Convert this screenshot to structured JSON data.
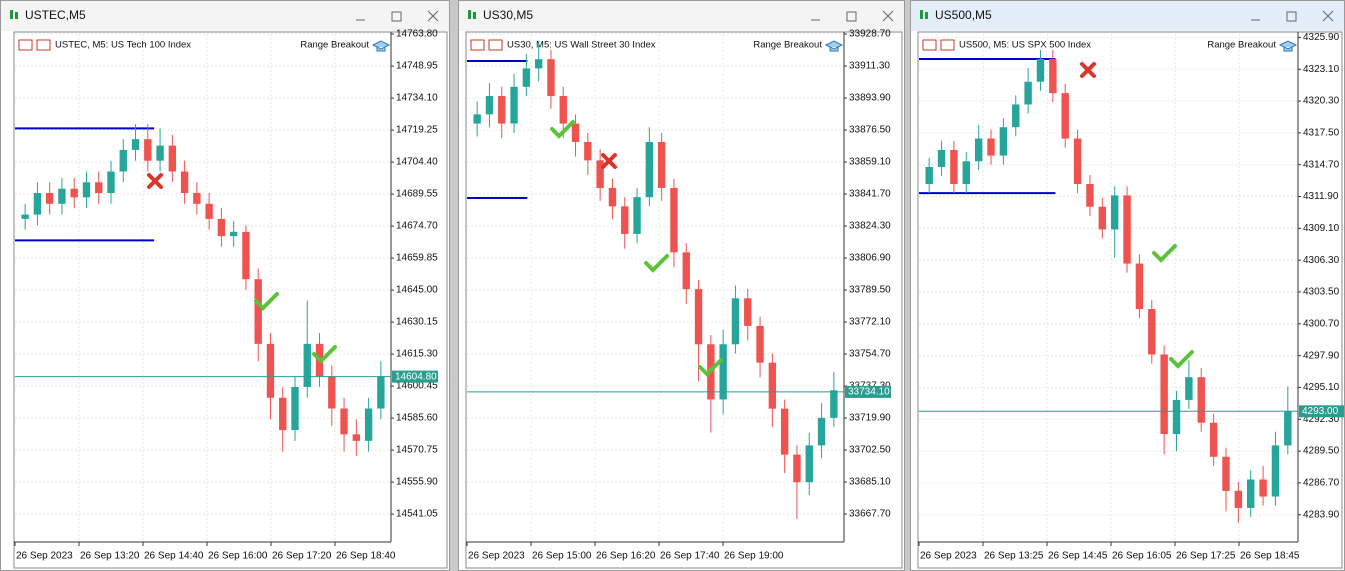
{
  "chart_data": [
    {
      "type": "candlestick",
      "title": "USTEC,M5",
      "subtitle": "USTEC, M5:  US Tech 100 Index",
      "indicator": "Range Breakout",
      "ylim": [
        14528.05,
        14763.8
      ],
      "yticks": [
        {
          "value": 14763.8,
          "label": "14763.80"
        },
        14748.95,
        {
          "value": 14734.1,
          "label": "14734.10"
        },
        14719.25,
        {
          "value": 14704.4,
          "label": "14704.40"
        },
        14689.55,
        {
          "value": 14674.7,
          "label": "14674.70"
        },
        14659.85,
        {
          "value": 14645,
          "label": "14645.00"
        },
        14630.15,
        {
          "value": 14615.3,
          "label": "14615.30"
        },
        14600.45,
        {
          "value": 14585.6,
          "label": "14585.60"
        },
        14570.75,
        {
          "value": 14555.9,
          "label": "14555.90"
        },
        14541.05
      ],
      "grid": true,
      "time_labels": [
        "26 Sep 2023",
        "26 Sep 13:20",
        "26 Sep 14:40",
        "26 Sep 16:00",
        "26 Sep 17:20",
        "26 Sep 18:40"
      ],
      "open": [
        14678,
        14680,
        14690,
        14685,
        14692,
        14688,
        14695,
        14690,
        14700,
        14710,
        14715,
        14705,
        14712,
        14700,
        14690,
        14685,
        14678,
        14670,
        14672,
        14650,
        14620,
        14595,
        14580,
        14600,
        14620,
        14605,
        14590,
        14578,
        14575,
        14590
      ],
      "high": [
        14685,
        14695,
        14695,
        14697,
        14697,
        14700,
        14700,
        14705,
        14715,
        14722,
        14722,
        14720,
        14717,
        14705,
        14695,
        14690,
        14683,
        14677,
        14675,
        14655,
        14625,
        14600,
        14605,
        14640,
        14625,
        14610,
        14595,
        14585,
        14595,
        14612
      ],
      "low": [
        14673,
        14675,
        14680,
        14680,
        14683,
        14683,
        14685,
        14685,
        14695,
        14705,
        14700,
        14700,
        14695,
        14685,
        14680,
        14673,
        14665,
        14665,
        14645,
        14612,
        14585,
        14570,
        14575,
        14595,
        14600,
        14582,
        14570,
        14568,
        14570,
        14585
      ],
      "close": [
        14680,
        14690,
        14685,
        14692,
        14688,
        14695,
        14690,
        14700,
        14710,
        14715,
        14705,
        14712,
        14700,
        14690,
        14685,
        14678,
        14670,
        14672,
        14650,
        14620,
        14595,
        14580,
        14600,
        14620,
        14605,
        14590,
        14578,
        14575,
        14590,
        14605
      ],
      "up_color": "#26a69a",
      "down_color": "#ef5350",
      "last": {
        "value": 14604.8,
        "label": "14604.80"
      },
      "range_high": 14720,
      "range_low": 14668,
      "range_color": "#0000cc"
    },
    {
      "type": "candlestick",
      "title": "US30,M5",
      "subtitle": "US30, M5:  US Wall Street 30 Index",
      "indicator": "Range Breakout",
      "ylim": [
        33652.5,
        33928.7
      ],
      "yticks": [
        {
          "value": 33928.7,
          "label": "33928.70"
        },
        {
          "value": 33911.3,
          "label": "33911.30"
        },
        {
          "value": 33893.9,
          "label": "33893.90"
        },
        {
          "value": 33876.5,
          "label": "33876.50"
        },
        {
          "value": 33859.1,
          "label": "33859.10"
        },
        {
          "value": 33841.7,
          "label": "33841.70"
        },
        {
          "value": 33824.3,
          "label": "33824.30"
        },
        {
          "value": 33806.9,
          "label": "33806.90"
        },
        {
          "value": 33789.5,
          "label": "33789.50"
        },
        {
          "value": 33772.1,
          "label": "33772.10"
        },
        {
          "value": 33754.7,
          "label": "33754.70"
        },
        {
          "value": 33737.3,
          "label": "33737.30"
        },
        {
          "value": 33719.9,
          "label": "33719.90"
        },
        {
          "value": 33702.5,
          "label": "33702.50"
        },
        {
          "value": 33685.1,
          "label": "33685.10"
        },
        {
          "value": 33667.7,
          "label": "33667.70"
        }
      ],
      "grid": true,
      "time_labels": [
        "26 Sep 2023",
        "26 Sep 15:00",
        "26 Sep 16:20",
        "26 Sep 17:40",
        "26 Sep 19:00"
      ],
      "open": [
        33880,
        33885,
        33895,
        33880,
        33900,
        33910,
        33915,
        33895,
        33880,
        33870,
        33860,
        33845,
        33835,
        33820,
        33840,
        33870,
        33845,
        33810,
        33790,
        33760,
        33730,
        33760,
        33785,
        33770,
        33750,
        33725,
        33700,
        33685,
        33705,
        33720
      ],
      "high": [
        33892,
        33902,
        33900,
        33907,
        33918,
        33925,
        33920,
        33900,
        33885,
        33875,
        33866,
        33850,
        33840,
        33845,
        33878,
        33875,
        33850,
        33815,
        33795,
        33765,
        33768,
        33792,
        33790,
        33775,
        33755,
        33730,
        33705,
        33712,
        33728,
        33745
      ],
      "low": [
        33873,
        33878,
        33872,
        33875,
        33895,
        33903,
        33888,
        33872,
        33862,
        33852,
        33838,
        33828,
        33812,
        33815,
        33835,
        33838,
        33802,
        33782,
        33740,
        33712,
        33722,
        33755,
        33762,
        33742,
        33715,
        33690,
        33665,
        33678,
        33698,
        33715
      ],
      "close": [
        33885,
        33895,
        33880,
        33900,
        33910,
        33915,
        33895,
        33880,
        33870,
        33860,
        33845,
        33835,
        33820,
        33840,
        33870,
        33845,
        33810,
        33790,
        33760,
        33730,
        33760,
        33785,
        33770,
        33750,
        33725,
        33700,
        33685,
        33705,
        33720,
        33735
      ],
      "up_color": "#26a69a",
      "down_color": "#ef5350",
      "last": {
        "value": 33734.1,
        "label": "33734.10"
      },
      "range_high": 33914,
      "range_low": 33839.5,
      "range_color": "#0000cc"
    },
    {
      "type": "candlestick",
      "title": "US500,M5",
      "subtitle": "US500, M5:  US SPX 500 Index",
      "indicator": "Range Breakout",
      "ylim": [
        4281.5,
        4326.2
      ],
      "yticks": [
        {
          "value": 4325.9,
          "label": "4325.90"
        },
        {
          "value": 4323.1,
          "label": "4323.10"
        },
        {
          "value": 4320.3,
          "label": "4320.30"
        },
        {
          "value": 4317.5,
          "label": "4317.50"
        },
        {
          "value": 4314.7,
          "label": "4314.70"
        },
        {
          "value": 4311.9,
          "label": "4311.90"
        },
        {
          "value": 4309.1,
          "label": "4309.10"
        },
        {
          "value": 4306.3,
          "label": "4306.30"
        },
        {
          "value": 4303.5,
          "label": "4303.50"
        },
        {
          "value": 4300.7,
          "label": "4300.70"
        },
        {
          "value": 4297.9,
          "label": "4297.90"
        },
        {
          "value": 4295.1,
          "label": "4295.10"
        },
        {
          "value": 4292.3,
          "label": "4292.30"
        },
        {
          "value": 4289.5,
          "label": "4289.50"
        },
        {
          "value": 4286.7,
          "label": "4286.70"
        },
        {
          "value": 4283.9,
          "label": "4283.90"
        }
      ],
      "grid": true,
      "time_labels": [
        "26 Sep 2023",
        "26 Sep 13:25",
        "26 Sep 14:45",
        "26 Sep 16:05",
        "26 Sep 17:25",
        "26 Sep 18:45"
      ],
      "open": [
        4313,
        4314.5,
        4316,
        4313,
        4315,
        4317,
        4315.5,
        4318,
        4320,
        4322,
        4324,
        4321,
        4317,
        4313,
        4311,
        4309,
        4312,
        4306,
        4302,
        4298,
        4291,
        4294,
        4296,
        4292,
        4289,
        4286,
        4284.5,
        4287,
        4285.5,
        4290
      ],
      "high": [
        4315.3,
        4316.8,
        4316.8,
        4315.8,
        4318.2,
        4317.8,
        4318.8,
        4320.8,
        4323.2,
        4324.8,
        4324.8,
        4321.8,
        4317.8,
        4313.8,
        4311.8,
        4312.8,
        4312.8,
        4306.8,
        4302.8,
        4298.8,
        4294.8,
        4297.5,
        4296.8,
        4292.8,
        4289.8,
        4286.8,
        4287.8,
        4288.2,
        4291.2,
        4295.2
      ],
      "low": [
        4312.2,
        4313.7,
        4312.2,
        4312.2,
        4314.2,
        4314.7,
        4314.7,
        4317.2,
        4319.2,
        4321.2,
        4320.2,
        4316.2,
        4312.2,
        4310.2,
        4308.2,
        4306.5,
        4305.2,
        4301.2,
        4297.2,
        4289.2,
        4289.5,
        4293.2,
        4291.2,
        4288.2,
        4284.2,
        4283.2,
        4283.7,
        4284.7,
        4284.7,
        4289.2
      ],
      "close": [
        4314.5,
        4316,
        4313,
        4315,
        4317,
        4315.5,
        4318,
        4320,
        4322,
        4324,
        4321,
        4317,
        4313,
        4311,
        4309,
        4312,
        4306,
        4302,
        4298,
        4291,
        4294,
        4296,
        4292,
        4289,
        4286,
        4284.5,
        4287,
        4285.5,
        4290,
        4293
      ],
      "up_color": "#26a69a",
      "down_color": "#ef5350",
      "last": {
        "value": 4293,
        "label": "4293.00"
      },
      "range_high": 4324,
      "range_low": 4312.2,
      "range_color": "#0000cc"
    }
  ]
}
